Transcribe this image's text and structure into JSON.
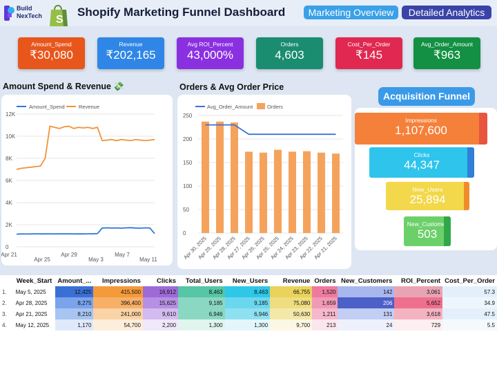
{
  "header": {
    "logo_line1": "Build",
    "logo_line2": "NexTech",
    "title": "Shopify Marketing Funnel Dashboard",
    "nav": [
      "Marketing Overview",
      "Detailed Analytics"
    ]
  },
  "kpis": [
    {
      "label": "Amount_Spend",
      "value": "₹30,080",
      "color": "#e8561c"
    },
    {
      "label": "Revenue",
      "value": "₹202,165",
      "color": "#2f86e6"
    },
    {
      "label": "Avg ROI_Percent",
      "value": "43,000%",
      "color": "#8a30e0"
    },
    {
      "label": "Orders",
      "value": "4,603",
      "color": "#1a8c70"
    },
    {
      "label": "Cost_Per_Order",
      "value": "₹145",
      "color": "#e02850"
    },
    {
      "label": "Avg_Order_Amount",
      "value": "₹963",
      "color": "#139043"
    }
  ],
  "chart_left_title": "Amount Spend & Revenue 💸",
  "chart_mid_title": "Orders & Avg Order Price",
  "chart_data": [
    {
      "type": "line",
      "title": "Amount Spend & Revenue",
      "x_ticks": [
        "Apr 21",
        "Apr 25",
        "Apr 29",
        "May 3",
        "May 7",
        "May 11"
      ],
      "y_ticks": [
        "0",
        "2K",
        "4K",
        "6K",
        "8K",
        "10K",
        "12K"
      ],
      "ylim": [
        0,
        12000
      ],
      "series": [
        {
          "name": "Amount_Spend",
          "color": "#2f78d6",
          "values": [
            1150,
            1170,
            1160,
            1170,
            1180,
            1170,
            1175,
            1180,
            1170,
            1175,
            1180,
            1175,
            1170,
            1175,
            1170,
            1180,
            1175,
            1200,
            1700,
            1720,
            1700,
            1710,
            1690,
            1720,
            1730,
            1700,
            1690,
            1720,
            1700,
            1200
          ]
        },
        {
          "name": "Revenue",
          "color": "#f0923a",
          "values": [
            7000,
            7100,
            7150,
            7200,
            7250,
            7300,
            8000,
            10900,
            10800,
            10700,
            10850,
            10900,
            10700,
            10800,
            10750,
            10800,
            10700,
            10800,
            9600,
            9650,
            9700,
            9600,
            9700,
            9650,
            9600,
            9700,
            9650,
            9600,
            9650,
            9700
          ]
        }
      ],
      "legend": "top-left"
    },
    {
      "type": "bar",
      "title": "Orders & Avg Order Price",
      "categories": [
        "Apr 30, 2025",
        "Apr 29, 2025",
        "Apr 28, 2025",
        "Apr 27, 2025",
        "Apr 26, 2025",
        "Apr 25, 2025",
        "Apr 24, 2025",
        "Apr 23, 2025",
        "Apr 22, 2025",
        "Apr 21, 2025"
      ],
      "y_ticks": [
        "0",
        "50",
        "100",
        "150",
        "200",
        "250"
      ],
      "ylim": [
        0,
        250
      ],
      "series": [
        {
          "name": "Orders",
          "color": "#f5a35c",
          "values": [
            237,
            237,
            235,
            173,
            171,
            177,
            173,
            174,
            171,
            169
          ]
        },
        {
          "name": "Avg_Order_Amount",
          "color": "#3a72d6",
          "values": [
            230,
            230,
            230,
            210,
            210,
            210,
            210,
            210,
            210,
            210
          ]
        }
      ],
      "legend": "top-left"
    }
  ],
  "funnel": {
    "title": "Acquisition Funnel",
    "stages": [
      {
        "label": "Impressions",
        "value": "1,107,600",
        "color": "#f5803a",
        "cap": "#e8553f"
      },
      {
        "label": "Clicks",
        "value": "44,347",
        "color": "#2ec4ec",
        "cap": "#2f80d6"
      },
      {
        "label": "New_Users",
        "value": "25,894",
        "color": "#f2d84a",
        "cap": "#f08c2a"
      },
      {
        "label": "New_Customer",
        "value": "503",
        "color": "#6cd06a",
        "cap": "#2fa84a"
      }
    ]
  },
  "table": {
    "headers": [
      "",
      "Week_Start",
      "Amount_...",
      "Impressions",
      "Clicks",
      "Total_Users",
      "New_Users",
      "Revenue",
      "Orders",
      "New_Customers",
      "ROI_Percent",
      "Cost_Per_Order"
    ],
    "rows": [
      [
        "1.",
        "May 5, 2025",
        "12,425",
        "415,500",
        "16,912",
        "8,463",
        "8,463",
        "66,755",
        "1,520",
        "142",
        "3,061",
        "57.3"
      ],
      [
        "2.",
        "Apr 28, 2025",
        "8,275",
        "396,400",
        "15,625",
        "9,185",
        "9,185",
        "75,080",
        "1,659",
        "206",
        "5,652",
        "34.9"
      ],
      [
        "3.",
        "Apr 21, 2025",
        "8,210",
        "241,000",
        "9,610",
        "6,946",
        "6,946",
        "50,630",
        "1,211",
        "131",
        "3,618",
        "47.5"
      ],
      [
        "4.",
        "May 12, 2025",
        "1,170",
        "54,700",
        "2,200",
        "1,300",
        "1,300",
        "9,700",
        "213",
        "24",
        "729",
        "5.5"
      ]
    ]
  }
}
